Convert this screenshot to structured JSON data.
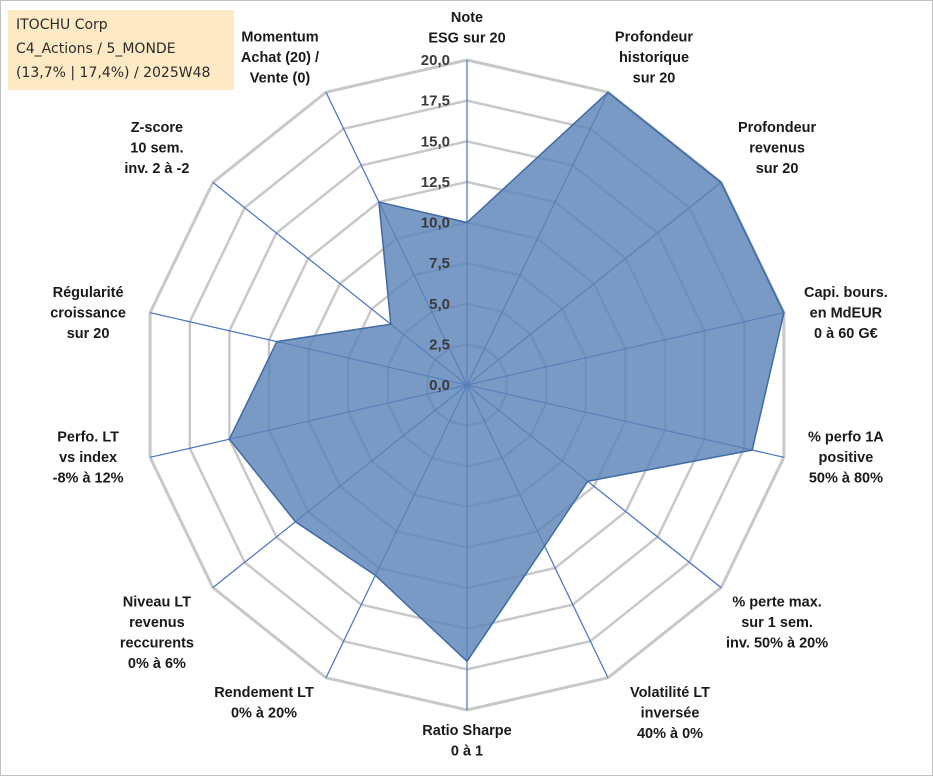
{
  "chart_title": {
    "line1": "ITOCHU Corp",
    "line2": "C4_Actions / 5_MONDE",
    "line3": "(13,7% | 17,4%) / 2025W48"
  },
  "colors": {
    "fill": "#5b84b8",
    "stroke": "#3f6aa6",
    "grid": "#c8c8c8",
    "spoke": "#4472c4",
    "title_bg": "#fde9c4"
  },
  "chart_data": {
    "type": "radar",
    "rlim": [
      0,
      20
    ],
    "ticks": [
      "0,0",
      "2,5",
      "5,0",
      "7,5",
      "10,0",
      "12,5",
      "15,0",
      "17,5",
      "20,0"
    ],
    "tick_values": [
      0,
      2.5,
      5,
      7.5,
      10,
      12.5,
      15,
      17.5,
      20
    ],
    "axes": [
      {
        "label": [
          "Note",
          "ESG sur 20"
        ],
        "value": 10
      },
      {
        "label": [
          "Profondeur",
          "historique",
          "sur 20"
        ],
        "value": 20
      },
      {
        "label": [
          "Profondeur",
          "revenus",
          "sur 20"
        ],
        "value": 20
      },
      {
        "label": [
          "Capi. bours.",
          "en MdEUR",
          "0 à 60 G€"
        ],
        "value": 20
      },
      {
        "label": [
          "% perfo 1A",
          "positive",
          "50% à 80%"
        ],
        "value": 18
      },
      {
        "label": [
          "% perte max.",
          "sur 1 sem.",
          "inv. 50% à 20%"
        ],
        "value": 9.5
      },
      {
        "label": [
          "Volatilité LT",
          "inversée",
          "40% à 0%"
        ],
        "value": 11
      },
      {
        "label": [
          "Ratio Sharpe",
          "0 à 1"
        ],
        "value": 17
      },
      {
        "label": [
          "Rendement LT",
          "0% à 20%"
        ],
        "value": 13
      },
      {
        "label": [
          "Niveau LT",
          "revenus",
          "reccurents",
          "0% à 6%"
        ],
        "value": 13.5
      },
      {
        "label": [
          "Perfo. LT",
          "vs index",
          "-8% à 12%"
        ],
        "value": 15
      },
      {
        "label": [
          "Régularité",
          "croissance",
          "sur 20"
        ],
        "value": 12
      },
      {
        "label": [
          "Z-score",
          "10 sem.",
          "inv. 2 à -2"
        ],
        "value": 6
      },
      {
        "label": [
          "Momentum",
          "Achat (20) /",
          "Vente (0)"
        ],
        "value": 12.5
      }
    ]
  }
}
